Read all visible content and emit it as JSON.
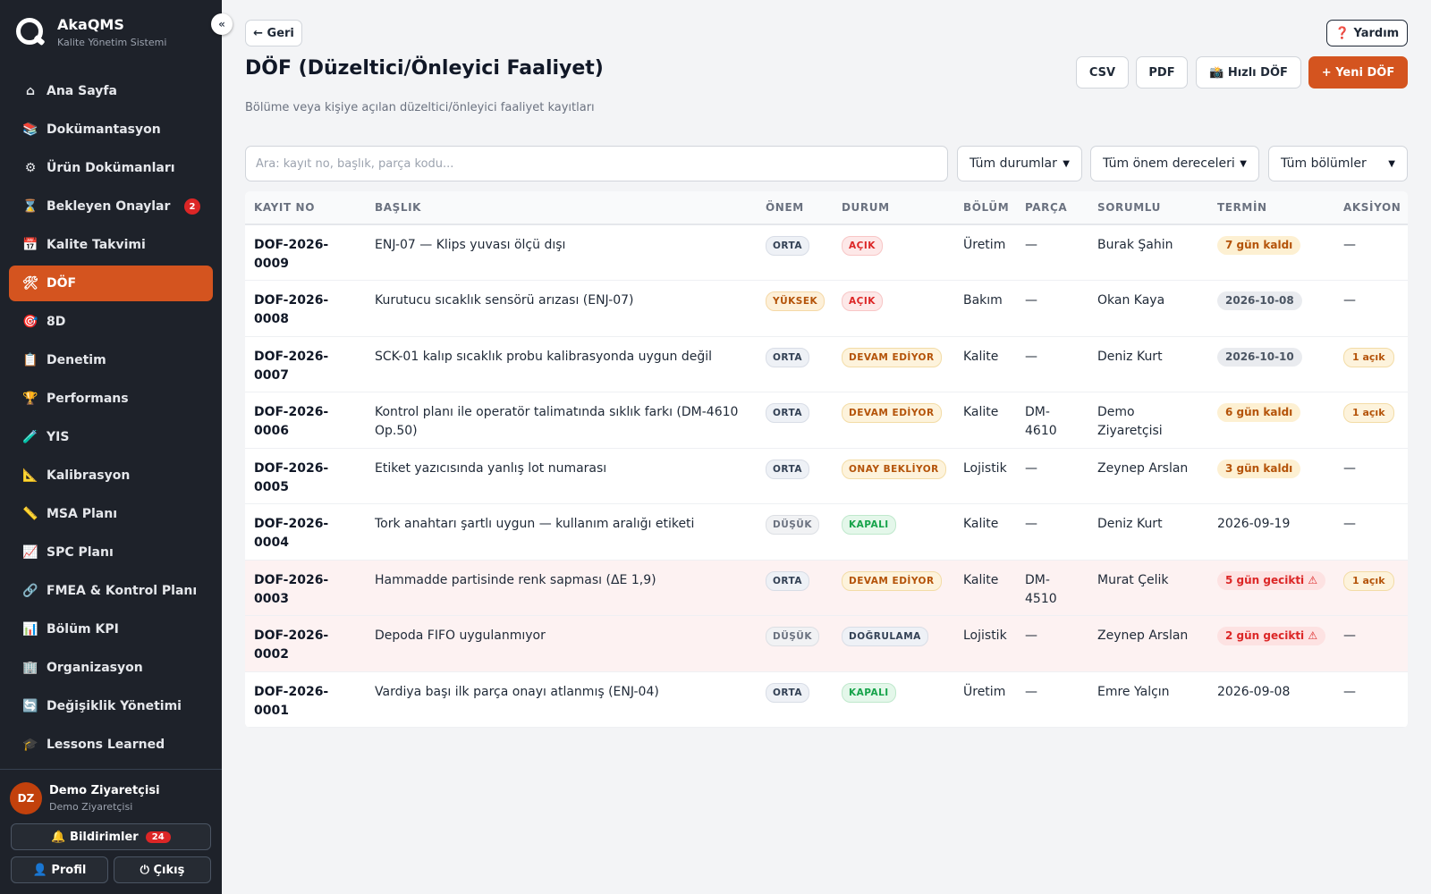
{
  "app": {
    "name": "AkaQMS",
    "subtitle": "Kalite Yönetim Sistemi",
    "collapse_label": "«"
  },
  "nav": [
    {
      "icon": "⌂",
      "label": "Ana Sayfa",
      "id": "home"
    },
    {
      "icon": "📚",
      "label": "Dokümantasyon",
      "id": "docs"
    },
    {
      "icon": "⚙",
      "label": "Ürün Dokümanları",
      "id": "product-docs"
    },
    {
      "icon": "⌛",
      "label": "Bekleyen Onaylar",
      "id": "pending",
      "badge": "2"
    },
    {
      "icon": "📅",
      "label": "Kalite Takvimi",
      "id": "calendar"
    },
    {
      "icon": "🛠",
      "label": "DÖF",
      "id": "dof",
      "active": true
    },
    {
      "icon": "🎯",
      "label": "8D",
      "id": "8d"
    },
    {
      "icon": "📋",
      "label": "Denetim",
      "id": "audit"
    },
    {
      "icon": "🏆",
      "label": "Performans",
      "id": "performance"
    },
    {
      "icon": "🧪",
      "label": "YIS",
      "id": "yis"
    },
    {
      "icon": "📐",
      "label": "Kalibrasyon",
      "id": "calibration"
    },
    {
      "icon": "📏",
      "label": "MSA Planı",
      "id": "msa"
    },
    {
      "icon": "📈",
      "label": "SPC Planı",
      "id": "spc"
    },
    {
      "icon": "🔗",
      "label": "FMEA & Kontrol Planı",
      "id": "fmea"
    },
    {
      "icon": "📊",
      "label": "Bölüm KPI",
      "id": "kpi"
    },
    {
      "icon": "🏢",
      "label": "Organizasyon",
      "id": "org"
    },
    {
      "icon": "🔄",
      "label": "Değişiklik Yönetimi",
      "id": "change"
    },
    {
      "icon": "🎓",
      "label": "Lessons Learned",
      "id": "lessons"
    }
  ],
  "user": {
    "initials": "DZ",
    "name": "Demo Ziyaretçisi",
    "role": "Demo Ziyaretçisi"
  },
  "footer": {
    "notifications_label": "🔔 Bildirimler",
    "notifications_count": "24",
    "profile_label": "👤 Profil",
    "logout_label": "⏻ Çıkış"
  },
  "header": {
    "back_label": "← Geri",
    "help_label": "❓ Yardım",
    "title": "DÖF (Düzeltici/Önleyici Faaliyet)",
    "subtitle": "Bölüme veya kişiye açılan düzeltici/önleyici faaliyet kayıtları",
    "csv_label": "CSV",
    "pdf_label": "PDF",
    "quick_label": "📸 Hızlı DÖF",
    "new_label": "+ Yeni DÖF"
  },
  "filters": {
    "search_placeholder": "Ara: kayıt no, başlık, parça kodu...",
    "status": "Tüm durumlar",
    "severity": "Tüm önem dereceleri",
    "department": "Tüm bölümler"
  },
  "table": {
    "columns": [
      "KAYIT NO",
      "BAŞLIK",
      "ÖNEM",
      "DURUM",
      "BÖLÜM",
      "PARÇA",
      "SORUMLU",
      "TERMİN",
      "AKSİYON"
    ],
    "rows": [
      {
        "id": "DOF-2026-0009",
        "title": "ENJ-07 — Klips yuvası ölçü dışı",
        "severity": "ORTA",
        "sev_class": "orta",
        "status": "AÇIK",
        "status_class": "acik",
        "dept": "Üretim",
        "part": "—",
        "owner": "Burak Şahin",
        "due": "7 gün kaldı",
        "due_class": "warn",
        "action": "—",
        "late": false
      },
      {
        "id": "DOF-2026-0008",
        "title": "Kurutucu sıcaklık sensörü arızası (ENJ-07)",
        "severity": "YÜKSEK",
        "sev_class": "yuksek",
        "status": "AÇIK",
        "status_class": "acik",
        "dept": "Bakım",
        "part": "—",
        "owner": "Okan Kaya",
        "due": "2026-10-08",
        "due_class": "gray",
        "action": "—",
        "late": false
      },
      {
        "id": "DOF-2026-0007",
        "title": "SCK-01 kalıp sıcaklık probu kalibrasyonda uygun değil",
        "severity": "ORTA",
        "sev_class": "orta",
        "status": "DEVAM EDİYOR",
        "status_class": "devam",
        "dept": "Kalite",
        "part": "—",
        "owner": "Deniz Kurt",
        "due": "2026-10-10",
        "due_class": "gray",
        "action": "1 açık",
        "late": false
      },
      {
        "id": "DOF-2026-0006",
        "title": "Kontrol planı ile operatör talimatında sıklık farkı (DM-4610 Op.50)",
        "severity": "ORTA",
        "sev_class": "orta",
        "status": "DEVAM EDİYOR",
        "status_class": "devam",
        "dept": "Kalite",
        "part": "DM-4610",
        "owner": "Demo Ziyaretçisi",
        "due": "6 gün kaldı",
        "due_class": "warn",
        "action": "1 açık",
        "late": false
      },
      {
        "id": "DOF-2026-0005",
        "title": "Etiket yazıcısında yanlış lot numarası",
        "severity": "ORTA",
        "sev_class": "orta",
        "status": "ONAY BEKLİYOR",
        "status_class": "onay",
        "dept": "Lojistik",
        "part": "—",
        "owner": "Zeynep Arslan",
        "due": "3 gün kaldı",
        "due_class": "warn",
        "action": "—",
        "late": false
      },
      {
        "id": "DOF-2026-0004",
        "title": "Tork anahtarı şartlı uygun — kullanım aralığı etiketi",
        "severity": "DÜŞÜK",
        "sev_class": "dusuk",
        "status": "KAPALI",
        "status_class": "kapali",
        "dept": "Kalite",
        "part": "—",
        "owner": "Deniz Kurt",
        "due": "2026-09-19",
        "due_class": "plain",
        "action": "—",
        "late": false
      },
      {
        "id": "DOF-2026-0003",
        "title": "Hammadde partisinde renk sapması (ΔE 1,9)",
        "severity": "ORTA",
        "sev_class": "orta",
        "status": "DEVAM EDİYOR",
        "status_class": "devam",
        "dept": "Kalite",
        "part": "DM-4510",
        "owner": "Murat Çelik",
        "due": "5 gün gecikti ⚠",
        "due_class": "late",
        "action": "1 açık",
        "late": true
      },
      {
        "id": "DOF-2026-0002",
        "title": "Depoda FIFO uygulanmıyor",
        "severity": "DÜŞÜK",
        "sev_class": "dusuk",
        "status": "DOĞRULAMA",
        "status_class": "dogru",
        "dept": "Lojistik",
        "part": "—",
        "owner": "Zeynep Arslan",
        "due": "2 gün gecikti ⚠",
        "due_class": "late",
        "action": "—",
        "late": true
      },
      {
        "id": "DOF-2026-0001",
        "title": "Vardiya başı ilk parça onayı atlanmış (ENJ-04)",
        "severity": "ORTA",
        "sev_class": "orta",
        "status": "KAPALI",
        "status_class": "kapali",
        "dept": "Üretim",
        "part": "—",
        "owner": "Emre Yalçın",
        "due": "2026-09-08",
        "due_class": "plain",
        "action": "—",
        "late": false
      }
    ]
  },
  "colors": {
    "accent": "#d4541f",
    "sidebar_bg": "#1e222a",
    "late_row_bg": "#fdf2f2"
  }
}
